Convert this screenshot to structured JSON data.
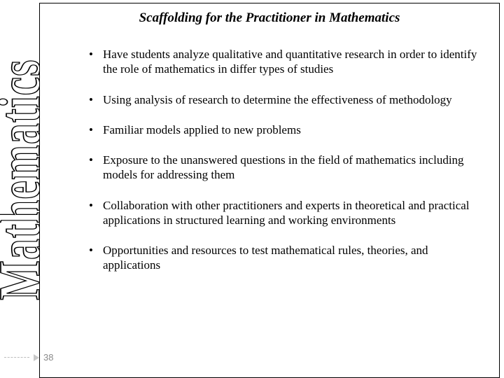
{
  "title": "Scaffolding for the Practitioner in Mathematics",
  "vertical_label": "Mathematics",
  "page_number": "38",
  "bullets": [
    "Have students analyze qualitative and quantitative research in order to identify the role of mathematics in differ types of studies",
    "Using analysis of research to determine the effectiveness of methodology",
    "Familiar models applied to new problems",
    "Exposure to the unanswered questions in the field of mathematics including models for addressing them",
    "Collaboration with other practitioners and experts in theoretical and practical applications in structured learning and working environments",
    "Opportunities and resources to test mathematical rules, theories, and applications"
  ],
  "colors": {
    "background": "#ffffff",
    "text": "#000000",
    "border": "#000000",
    "page_num": "#8a8a8a",
    "dashed": "#bdbdbd",
    "triangle": "#c9c9c9"
  },
  "typography": {
    "title_fontsize": 19,
    "title_style": "bold italic",
    "bullet_fontsize": 17,
    "vertical_fontsize": 52,
    "font_family": "Times New Roman"
  }
}
